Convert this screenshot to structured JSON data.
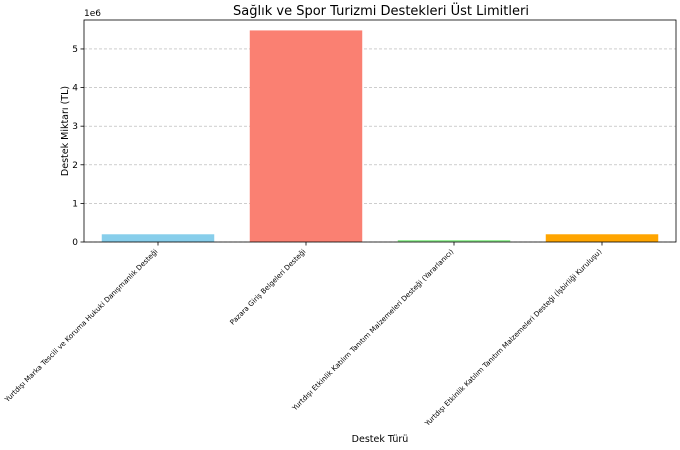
{
  "chart_data": {
    "type": "bar",
    "title": "Sağlık ve Spor Turizmi Destekleri Üst Limitleri",
    "xlabel": "Destek Türü",
    "ylabel": "Destek Miktarı (TL)",
    "y_multiplier_label": "1e6",
    "ylim": [
      0,
      5.75
    ],
    "yticks": [
      0,
      1,
      2,
      3,
      4,
      5
    ],
    "grid": true,
    "categories": [
      "Yurtdışı Marka Tescili ve Koruma Hukuki Danışmanlık Desteği",
      "Pazara Giriş Belgeleri Desteği",
      "Yurtdışı Etkinlik Katılım Tanıtım Malzemeleri Desteği (Yararlanıcı)",
      "Yurtdışı Etkinlik Katılım Tanıtım Malzemeleri Desteği (İşbirliği Kuruluşu)"
    ],
    "values": [
      0.2,
      5.48,
      0.05,
      0.2
    ],
    "colors": [
      "#87ceeb",
      "#fa8072",
      "#90ee90",
      "#ffa500"
    ]
  }
}
